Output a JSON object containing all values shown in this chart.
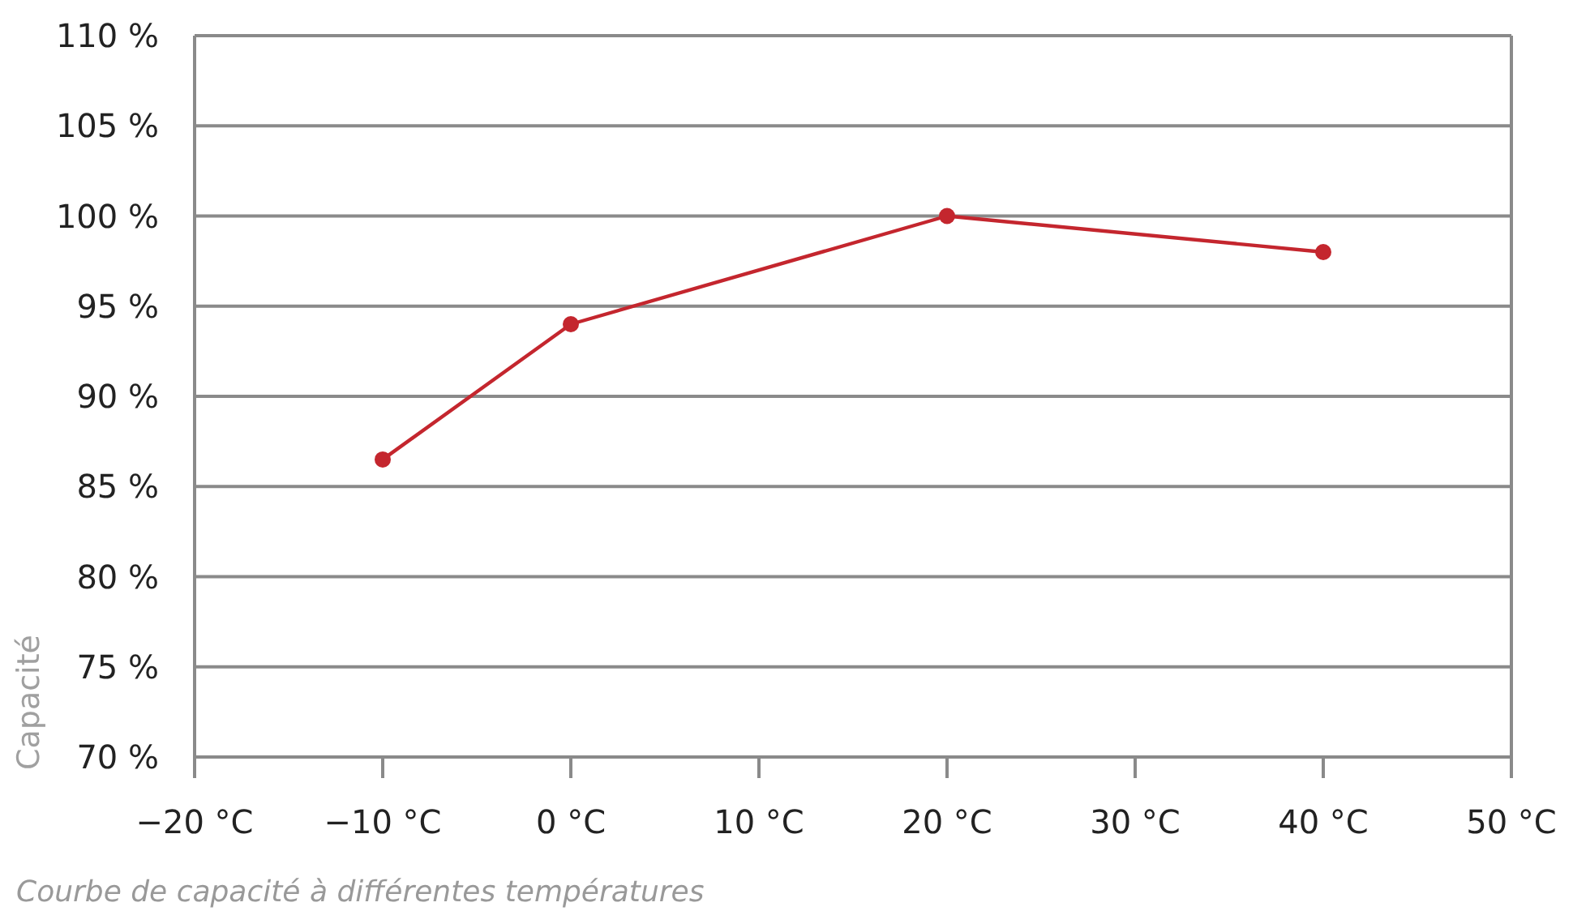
{
  "chart_data": {
    "type": "line",
    "ylabel": "Capacité",
    "annotations": [
      "Courbe de capacité à différentes températures"
    ],
    "x": [
      -10,
      0,
      20,
      40
    ],
    "series": [
      {
        "color": "#c4262e",
        "values": [
          86.5,
          94,
          100,
          98
        ]
      }
    ],
    "xlim": [
      -20,
      50
    ],
    "xticks": [
      {
        "value": -20,
        "label": "−20 °C"
      },
      {
        "value": -10,
        "label": "−10 °C"
      },
      {
        "value": 0,
        "label": "0 °C"
      },
      {
        "value": 10,
        "label": "10 °C"
      },
      {
        "value": 20,
        "label": "20 °C"
      },
      {
        "value": 30,
        "label": "30 °C"
      },
      {
        "value": 40,
        "label": "40 °C"
      },
      {
        "value": 50,
        "label": "50 °C"
      }
    ],
    "ylim": [
      70,
      110
    ],
    "yticks": [
      {
        "value": 70,
        "label": "70 %"
      },
      {
        "value": 75,
        "label": "75 %"
      },
      {
        "value": 80,
        "label": "80 %"
      },
      {
        "value": 85,
        "label": "85 %"
      },
      {
        "value": 90,
        "label": "90 %"
      },
      {
        "value": 95,
        "label": "95 %"
      },
      {
        "value": 100,
        "label": "100 %"
      },
      {
        "value": 105,
        "label": "105 %"
      },
      {
        "value": 110,
        "label": "110 %"
      }
    ],
    "grid": "y",
    "marker": "circle",
    "line_style": "solid"
  }
}
